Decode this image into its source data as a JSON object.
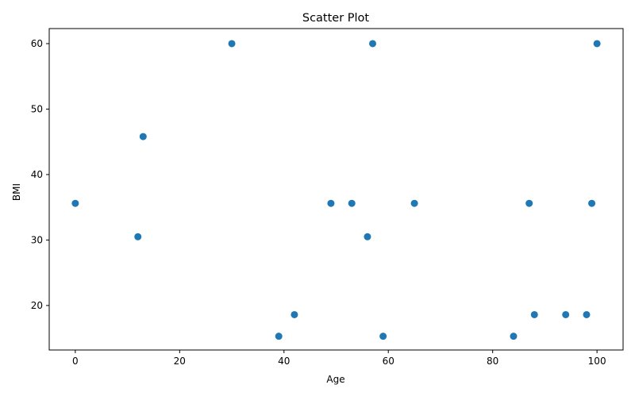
{
  "chart_data": {
    "type": "scatter",
    "title": "Scatter Plot",
    "xlabel": "Age",
    "ylabel": "BMI",
    "xlim": [
      -5,
      105
    ],
    "ylim": [
      13.2,
      62.3
    ],
    "xticks": [
      0,
      20,
      40,
      60,
      80,
      100
    ],
    "yticks": [
      20,
      30,
      40,
      50,
      60
    ],
    "xtick_labels": [
      "0",
      "20",
      "40",
      "60",
      "80",
      "100"
    ],
    "ytick_labels": [
      "20",
      "30",
      "40",
      "50",
      "60"
    ],
    "grid": false,
    "marker_color": "#1f77b4",
    "x": [
      0,
      12,
      13,
      30,
      39,
      42,
      49,
      53,
      56,
      57,
      59,
      65,
      84,
      87,
      88,
      94,
      98,
      99,
      100
    ],
    "y": [
      35.6,
      30.5,
      45.8,
      60.0,
      15.3,
      18.6,
      35.6,
      35.6,
      30.5,
      60.0,
      15.3,
      35.6,
      15.3,
      35.6,
      18.6,
      18.6,
      18.6,
      35.6,
      60.0
    ]
  }
}
